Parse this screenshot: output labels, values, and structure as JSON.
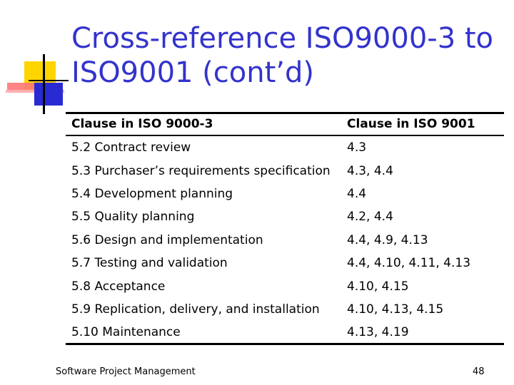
{
  "slide": {
    "title": "Cross-reference ISO9000-3 to\nISO9001 (cont’d)"
  },
  "table": {
    "headers": [
      "Clause in ISO 9000-3",
      "Clause in ISO 9001"
    ],
    "rows": [
      [
        "5.2 Contract review",
        "4.3"
      ],
      [
        "5.3 Purchaser’s requirements specification",
        "4.3,  4.4"
      ],
      [
        "5.4 Development planning",
        "4.4"
      ],
      [
        "5.5 Quality planning",
        "4.2,  4.4"
      ],
      [
        "5.6 Design and implementation",
        "4.4,  4.9,  4.13"
      ],
      [
        "5.7 Testing and validation",
        "4.4,  4.10,  4.11,  4.13"
      ],
      [
        "5.8 Acceptance",
        "4.10,  4.15"
      ],
      [
        "5.9 Replication, delivery, and installation",
        "4.10,  4.13,  4.15"
      ],
      [
        "5.10 Maintenance",
        "4.13,  4.19"
      ]
    ]
  },
  "footer": {
    "left": "Software Project Management",
    "page_number": "48"
  },
  "colors": {
    "title": "#3333cc",
    "accent_yellow": "#ffd500",
    "accent_blue": "#2a2ad4",
    "accent_red": "#ff7777"
  }
}
